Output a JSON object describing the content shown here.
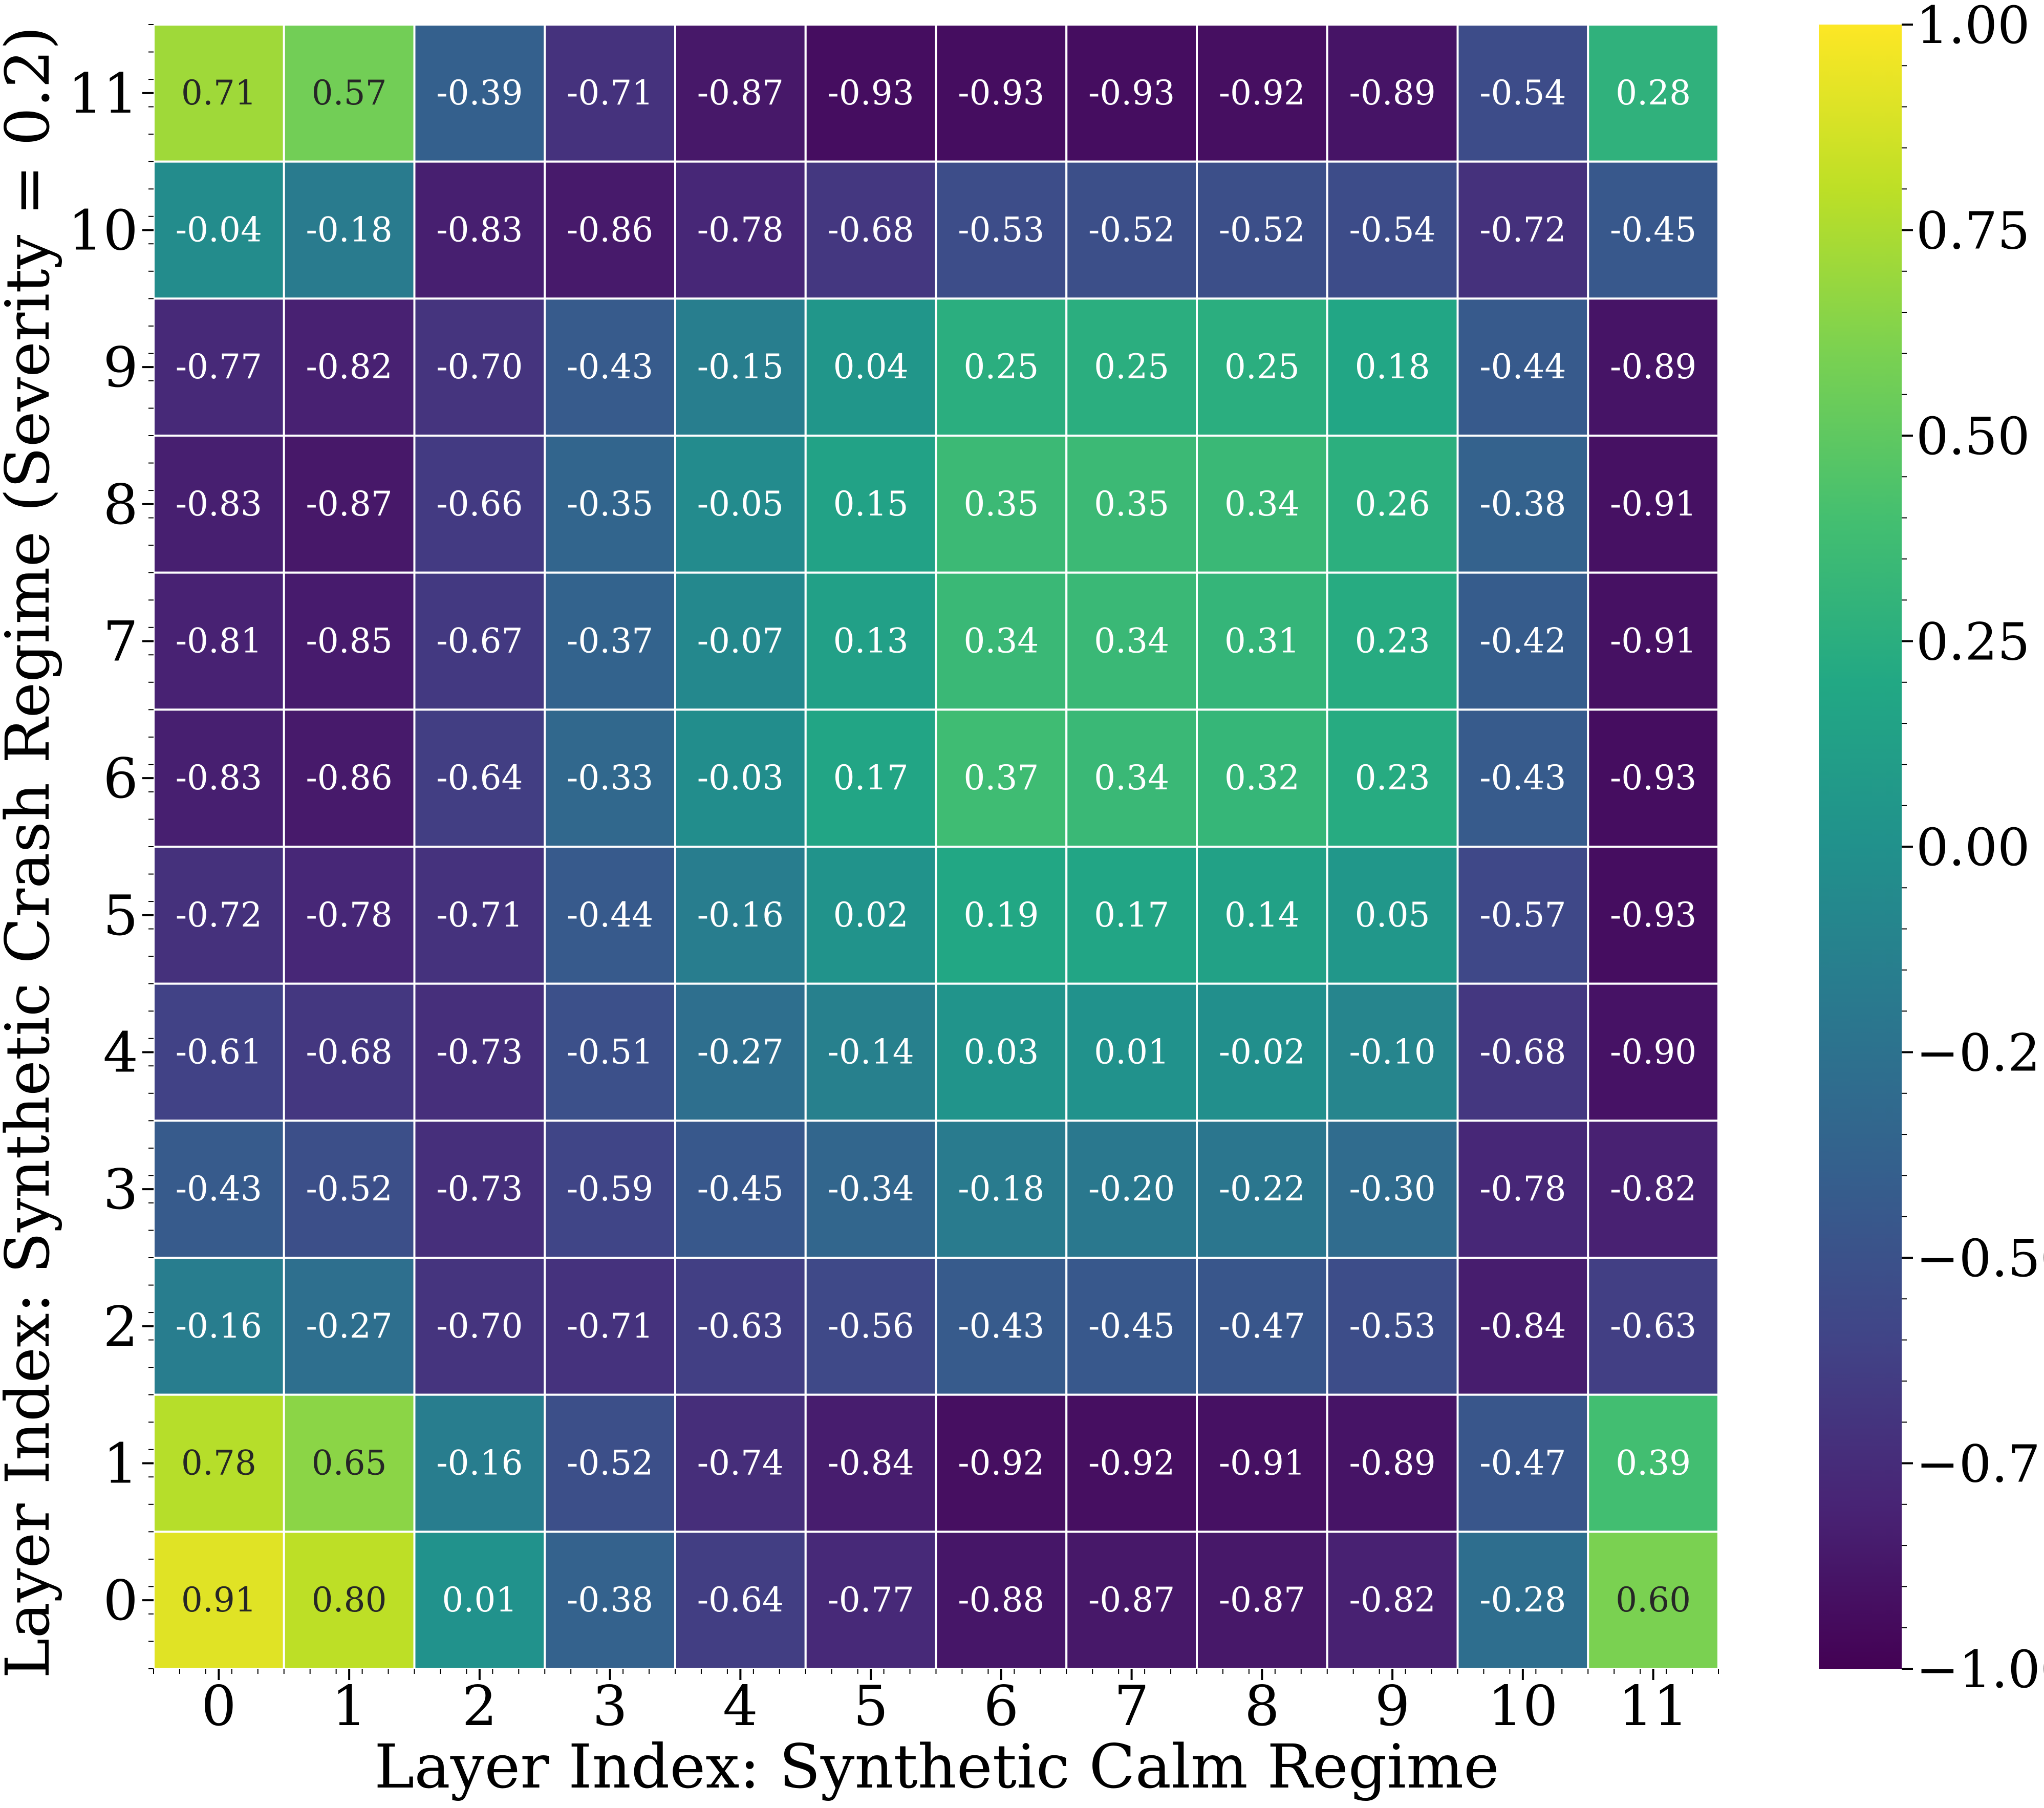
{
  "chart_data": {
    "type": "heatmap",
    "xlabel": "Layer Index: Synthetic Calm Regime",
    "ylabel": "Layer Index: Synthetic Crash Regime (Severity = 0.2)",
    "x_ticks": [
      "0",
      "1",
      "2",
      "3",
      "4",
      "5",
      "6",
      "7",
      "8",
      "9",
      "10",
      "11"
    ],
    "y_ticks": [
      "0",
      "1",
      "2",
      "3",
      "4",
      "5",
      "6",
      "7",
      "8",
      "9",
      "10",
      "11"
    ],
    "colormap": "viridis",
    "vmin": -1.0,
    "vmax": 1.0,
    "colorbar_ticks": [
      "1.00",
      "0.75",
      "0.50",
      "0.25",
      "0.00",
      "−0.25",
      "−0.50",
      "−0.75",
      "−1.00"
    ],
    "colorbar_values": [
      1.0,
      0.75,
      0.5,
      0.25,
      0.0,
      -0.25,
      -0.5,
      -0.75,
      -1.0
    ],
    "rows": [
      {
        "y": "11",
        "values": [
          0.71,
          0.57,
          -0.39,
          -0.71,
          -0.87,
          -0.93,
          -0.93,
          -0.93,
          -0.92,
          -0.89,
          -0.54,
          0.28
        ]
      },
      {
        "y": "10",
        "values": [
          -0.04,
          -0.18,
          -0.83,
          -0.86,
          -0.78,
          -0.68,
          -0.53,
          -0.52,
          -0.52,
          -0.54,
          -0.72,
          -0.45
        ]
      },
      {
        "y": "9",
        "values": [
          -0.77,
          -0.82,
          -0.7,
          -0.43,
          -0.15,
          0.04,
          0.25,
          0.25,
          0.25,
          0.18,
          -0.44,
          -0.89
        ]
      },
      {
        "y": "8",
        "values": [
          -0.83,
          -0.87,
          -0.66,
          -0.35,
          -0.05,
          0.15,
          0.35,
          0.35,
          0.34,
          0.26,
          -0.38,
          -0.91
        ]
      },
      {
        "y": "7",
        "values": [
          -0.81,
          -0.85,
          -0.67,
          -0.37,
          -0.07,
          0.13,
          0.34,
          0.34,
          0.31,
          0.23,
          -0.42,
          -0.91
        ]
      },
      {
        "y": "6",
        "values": [
          -0.83,
          -0.86,
          -0.64,
          -0.33,
          -0.03,
          0.17,
          0.37,
          0.34,
          0.32,
          0.23,
          -0.43,
          -0.93
        ]
      },
      {
        "y": "5",
        "values": [
          -0.72,
          -0.78,
          -0.71,
          -0.44,
          -0.16,
          0.02,
          0.19,
          0.17,
          0.14,
          0.05,
          -0.57,
          -0.93
        ]
      },
      {
        "y": "4",
        "values": [
          -0.61,
          -0.68,
          -0.73,
          -0.51,
          -0.27,
          -0.14,
          0.03,
          0.01,
          -0.02,
          -0.1,
          -0.68,
          -0.9
        ]
      },
      {
        "y": "3",
        "values": [
          -0.43,
          -0.52,
          -0.73,
          -0.59,
          -0.45,
          -0.34,
          -0.18,
          -0.2,
          -0.22,
          -0.3,
          -0.78,
          -0.82
        ]
      },
      {
        "y": "2",
        "values": [
          -0.16,
          -0.27,
          -0.7,
          -0.71,
          -0.63,
          -0.56,
          -0.43,
          -0.45,
          -0.47,
          -0.53,
          -0.84,
          -0.63
        ]
      },
      {
        "y": "1",
        "values": [
          0.78,
          0.65,
          -0.16,
          -0.52,
          -0.74,
          -0.84,
          -0.92,
          -0.92,
          -0.91,
          -0.89,
          -0.47,
          0.39
        ]
      },
      {
        "y": "0",
        "values": [
          0.91,
          0.8,
          0.01,
          -0.38,
          -0.64,
          -0.77,
          -0.88,
          -0.87,
          -0.87,
          -0.82,
          -0.28,
          0.6
        ]
      }
    ],
    "annotation_format": "2 decimals",
    "grid": false
  }
}
